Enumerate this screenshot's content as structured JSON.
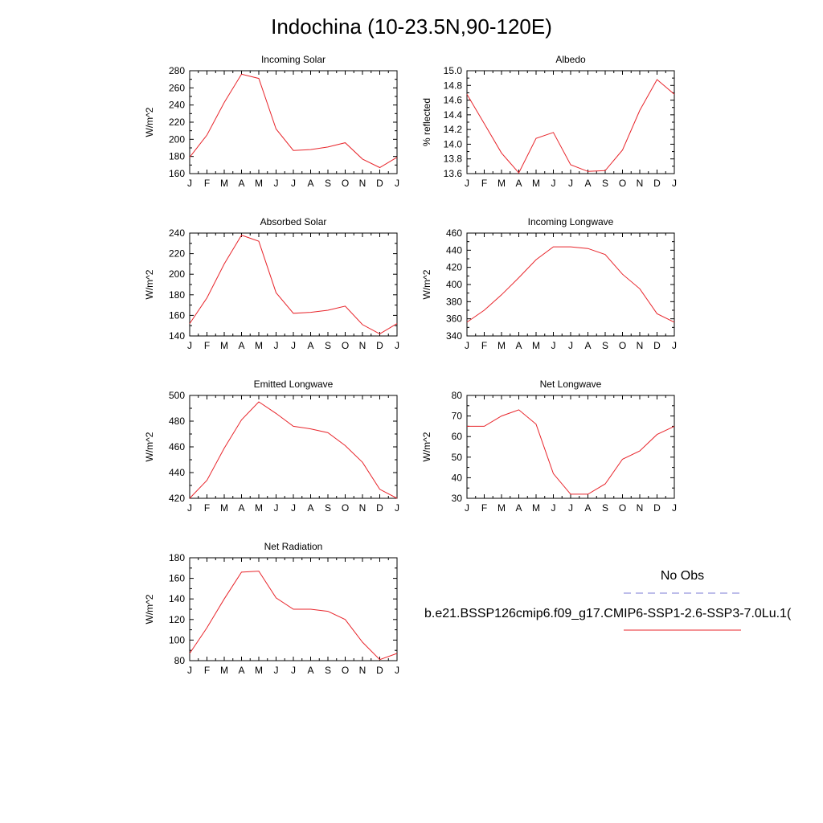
{
  "title": "Indochina (10-23.5N,90-120E)",
  "months": [
    "J",
    "F",
    "M",
    "A",
    "M",
    "J",
    "J",
    "A",
    "S",
    "O",
    "N",
    "D",
    "J"
  ],
  "line_color": "#e8252b",
  "obs_color": "#7b7bd6",
  "legend": {
    "obs_label": "No Obs",
    "model_label": "b.e21.BSSP126cmip6.f09_g17.CMIP6-SSP1-2.6-SSP3-7.0Lu.1("
  },
  "chart_data": [
    {
      "type": "line",
      "title": "Incoming Solar",
      "ylabel": "W/m^2",
      "ylim": [
        160,
        280
      ],
      "yticks": [
        160,
        180,
        200,
        220,
        240,
        260,
        280
      ],
      "series": [
        {
          "values": [
            179,
            205,
            243,
            276,
            271,
            212,
            187,
            188,
            191,
            196,
            177,
            167,
            179
          ]
        }
      ]
    },
    {
      "type": "line",
      "title": "Albedo",
      "ylabel": "% reflected",
      "ylim": [
        13.6,
        15.0
      ],
      "yticks": [
        "13.6",
        "13.8",
        "14.0",
        "14.2",
        "14.4",
        "14.6",
        "14.8",
        "15.0"
      ],
      "series": [
        {
          "values": [
            14.68,
            14.28,
            13.88,
            13.61,
            14.08,
            14.16,
            13.72,
            13.63,
            13.64,
            13.92,
            14.46,
            14.88,
            14.68
          ]
        }
      ]
    },
    {
      "type": "line",
      "title": "Absorbed Solar",
      "ylabel": "W/m^2",
      "ylim": [
        140,
        240
      ],
      "yticks": [
        140,
        160,
        180,
        200,
        220,
        240
      ],
      "series": [
        {
          "values": [
            152,
            177,
            210,
            238,
            232,
            182,
            162,
            163,
            165,
            169,
            151,
            142,
            152
          ]
        }
      ]
    },
    {
      "type": "line",
      "title": "Incoming Longwave",
      "ylabel": "W/m^2",
      "ylim": [
        340,
        460
      ],
      "yticks": [
        340,
        360,
        380,
        400,
        420,
        440,
        460
      ],
      "series": [
        {
          "values": [
            356,
            370,
            388,
            408,
            429,
            444,
            444,
            442,
            435,
            412,
            395,
            366,
            356
          ]
        }
      ]
    },
    {
      "type": "line",
      "title": "Emitted Longwave",
      "ylabel": "W/m^2",
      "ylim": [
        420,
        500
      ],
      "yticks": [
        420,
        440,
        460,
        480,
        500
      ],
      "series": [
        {
          "values": [
            420,
            434,
            459,
            481,
            495,
            486,
            476,
            474,
            471,
            461,
            448,
            427,
            420
          ]
        }
      ]
    },
    {
      "type": "line",
      "title": "Net Longwave",
      "ylabel": "W/m^2",
      "ylim": [
        30,
        80
      ],
      "yticks": [
        30,
        40,
        50,
        60,
        70,
        80
      ],
      "series": [
        {
          "values": [
            65,
            65,
            70,
            73,
            66,
            42,
            32,
            32,
            37,
            49,
            53,
            61,
            65
          ]
        }
      ]
    },
    {
      "type": "line",
      "title": "Net Radiation",
      "ylabel": "W/m^2",
      "ylim": [
        80,
        180
      ],
      "yticks": [
        80,
        100,
        120,
        140,
        160,
        180
      ],
      "series": [
        {
          "values": [
            87,
            112,
            140,
            166,
            167,
            141,
            130,
            130,
            128,
            120,
            98,
            81,
            87
          ]
        }
      ]
    }
  ]
}
